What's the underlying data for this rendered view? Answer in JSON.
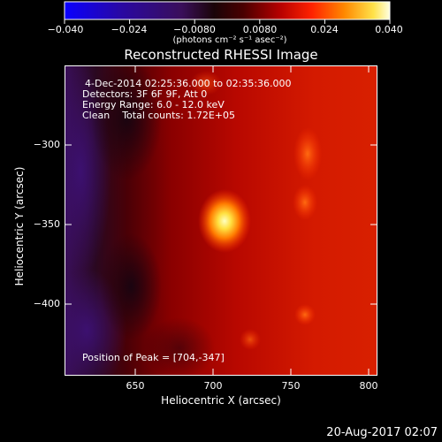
{
  "colorbar": {
    "ticks": [
      "−0.040",
      "−0.024",
      "−0.0080",
      "0.0080",
      "0.024",
      "0.040"
    ],
    "units": "(photons cm⁻² s⁻¹ asec⁻²)",
    "range": [
      -0.04,
      0.04
    ]
  },
  "title": "Reconstructed RHESSI Image",
  "info": {
    "time": "4-Dec-2014 02:25:36.000 to 02:35:36.000",
    "detectors": "Detectors: 3F 6F 9F, Att 0",
    "energy": "Energy Range: 6.0 - 12.0 keV",
    "clean": "Clean    Total counts: 1.72E+05",
    "peak": "Position of Peak = [704,-347]"
  },
  "axes": {
    "xlabel": "Heliocentric X (arcsec)",
    "ylabel": "Heliocentric Y (arcsec)",
    "xticks": [
      "650",
      "700",
      "750",
      "800"
    ],
    "yticks": [
      "−300",
      "−350",
      "−400"
    ]
  },
  "footer": {
    "date": "20-Aug-2017 02:07"
  }
}
